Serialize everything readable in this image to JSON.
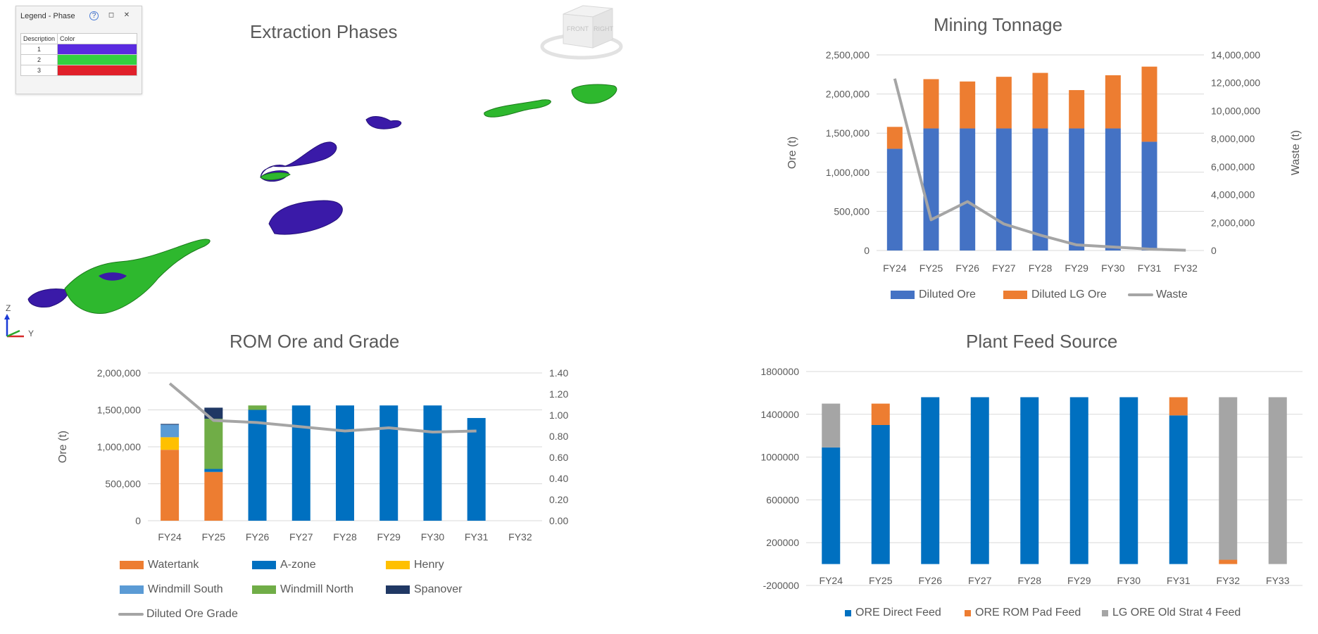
{
  "legend_window": {
    "title": "Legend - Phase",
    "help": "?",
    "restore": "◻",
    "close": "✕",
    "col_description": "Description",
    "col_color": "Color",
    "rows": [
      {
        "label": "1",
        "color": "#5a2be0"
      },
      {
        "label": "2",
        "color": "#33d040"
      },
      {
        "label": "3",
        "color": "#e0202a"
      }
    ]
  },
  "view3d": {
    "title": "Extraction Phases",
    "cube_front": "FRONT",
    "cube_right": "RIGHT",
    "axis_z": "Z",
    "axis_y": "Y"
  },
  "chart_data": [
    {
      "type": "bar",
      "stacked": true,
      "title": "Mining Tonnage",
      "categories": [
        "FY24",
        "FY25",
        "FY26",
        "FY27",
        "FY28",
        "FY29",
        "FY30",
        "FY31",
        "FY32"
      ],
      "series": [
        {
          "name": "Diluted Ore",
          "color": "#4472c4",
          "values": [
            1300000,
            1560000,
            1560000,
            1560000,
            1560000,
            1560000,
            1560000,
            1390000,
            0
          ]
        },
        {
          "name": "Diluted LG Ore",
          "color": "#ed7d31",
          "values": [
            280000,
            630000,
            600000,
            660000,
            710000,
            490000,
            680000,
            960000,
            0
          ]
        },
        {
          "name": "Waste",
          "type": "line",
          "axis": "secondary",
          "color": "#a5a5a5",
          "values": [
            12300000,
            2200000,
            3500000,
            1900000,
            1100000,
            400000,
            250000,
            100000,
            20000
          ]
        }
      ],
      "ylabel": "Ore (t)",
      "y2label": "Waste (t)",
      "ylim": [
        0,
        2500000
      ],
      "y2lim": [
        0,
        14000000
      ],
      "yticks": [
        "2,500,000",
        "2,000,000",
        "1,500,000",
        "1,000,000",
        "500,000",
        "0"
      ],
      "y2ticks": [
        "14,000,000",
        "12,000,000",
        "10,000,000",
        "8,000,000",
        "6,000,000",
        "4,000,000",
        "2,000,000",
        "0"
      ]
    },
    {
      "type": "bar",
      "stacked": true,
      "title": "ROM Ore and Grade",
      "categories": [
        "FY24",
        "FY25",
        "FY26",
        "FY27",
        "FY28",
        "FY29",
        "FY30",
        "FY31",
        "FY32"
      ],
      "series": [
        {
          "name": "Watertank",
          "color": "#ed7d31",
          "values": [
            960000,
            660000,
            0,
            0,
            0,
            0,
            0,
            0,
            0
          ]
        },
        {
          "name": "A-zone",
          "color": "#0070c0",
          "values": [
            0,
            40000,
            1500000,
            1560000,
            1560000,
            1560000,
            1560000,
            1390000,
            0
          ]
        },
        {
          "name": "Henry",
          "color": "#ffc000",
          "values": [
            170000,
            0,
            0,
            0,
            0,
            0,
            0,
            0,
            0
          ]
        },
        {
          "name": "Windmill South",
          "color": "#5b9bd5",
          "values": [
            170000,
            0,
            0,
            0,
            0,
            0,
            0,
            0,
            0
          ]
        },
        {
          "name": "Windmill North",
          "color": "#70ad47",
          "values": [
            0,
            680000,
            60000,
            0,
            0,
            0,
            0,
            0,
            0
          ]
        },
        {
          "name": "Spanover",
          "color": "#203864",
          "values": [
            10000,
            150000,
            0,
            0,
            0,
            0,
            0,
            0,
            0
          ]
        },
        {
          "name": "Diluted Ore Grade",
          "type": "line",
          "axis": "secondary",
          "color": "#a5a5a5",
          "values": [
            1.3,
            0.95,
            0.93,
            0.89,
            0.85,
            0.88,
            0.84,
            0.85,
            null
          ]
        }
      ],
      "ylabel": "Ore (t)",
      "ylim": [
        0,
        2000000
      ],
      "y2lim": [
        0,
        1.4
      ],
      "yticks": [
        "2,000,000",
        "1,500,000",
        "1,000,000",
        "500,000",
        "0"
      ],
      "y2ticks": [
        "1.40",
        "1.20",
        "1.00",
        "0.80",
        "0.60",
        "0.40",
        "0.20",
        "0.00"
      ]
    },
    {
      "type": "bar",
      "stacked": true,
      "title": "Plant Feed Source",
      "categories": [
        "FY24",
        "FY25",
        "FY26",
        "FY27",
        "FY28",
        "FY29",
        "FY30",
        "FY31",
        "FY32",
        "FY33"
      ],
      "series": [
        {
          "name": "ORE Direct Feed",
          "color": "#0070c0",
          "values": [
            1090000,
            1300000,
            1560000,
            1560000,
            1560000,
            1560000,
            1560000,
            1390000,
            0,
            0
          ]
        },
        {
          "name": "ORE ROM Pad Feed",
          "color": "#ed7d31",
          "values": [
            0,
            200000,
            0,
            0,
            0,
            0,
            0,
            170000,
            40000,
            0
          ]
        },
        {
          "name": "LG ORE Old Strat 4 Feed",
          "color": "#a5a5a5",
          "values": [
            410000,
            0,
            0,
            0,
            0,
            0,
            0,
            0,
            1520000,
            1560000
          ]
        }
      ],
      "ylim": [
        -200000,
        1800000
      ],
      "yticks": [
        "1800000",
        "1400000",
        "1000000",
        "600000",
        "200000",
        "-200000"
      ]
    }
  ]
}
